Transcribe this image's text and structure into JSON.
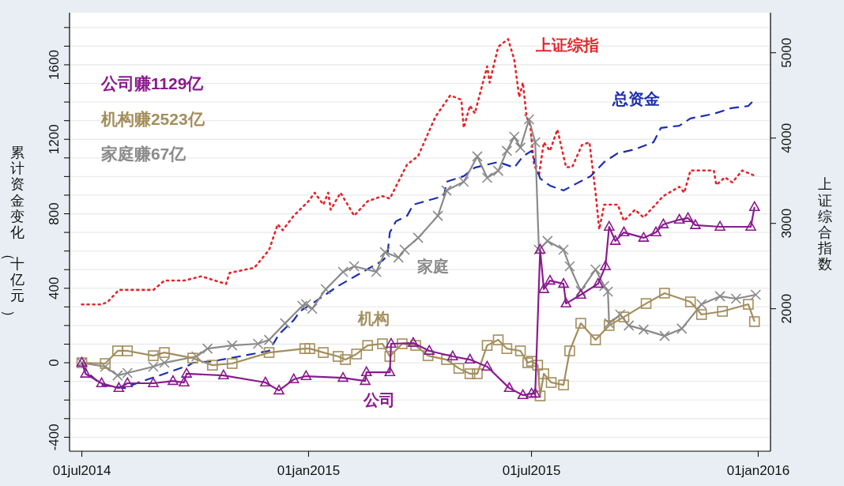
{
  "chart_data": {
    "type": "line",
    "ylabel": "累计资金变化（十亿元）",
    "y2label": "上证综合指数",
    "annotations": [
      "公司赚1129亿",
      "机构赚2523亿",
      "家庭赚67亿"
    ],
    "xlim": [
      "2014-06-21",
      "2016-01-11"
    ],
    "xticks": [
      {
        "value": "2014-07-01",
        "label": "01jul2014"
      },
      {
        "value": "2015-01-01",
        "label": "01jan2015"
      },
      {
        "value": "2015-07-01",
        "label": "01jul2015"
      },
      {
        "value": "2016-01-01",
        "label": "01jan2016"
      }
    ],
    "ylim": [
      -475,
      1880
    ],
    "yticks": [
      -400,
      {
        "value": -300,
        "label": null
      },
      {
        "value": -200,
        "label": null
      },
      {
        "value": -100,
        "label": null
      },
      0,
      {
        "value": 100,
        "label": null
      },
      {
        "value": 200,
        "label": null
      },
      {
        "value": 300,
        "label": null
      },
      400,
      {
        "value": 500,
        "label": null
      },
      {
        "value": 600,
        "label": null
      },
      {
        "value": 700,
        "label": null
      },
      800,
      {
        "value": 900,
        "label": null
      },
      {
        "value": 1000,
        "label": null
      },
      {
        "value": 1100,
        "label": null
      },
      1200,
      {
        "value": 1300,
        "label": null
      },
      {
        "value": 1400,
        "label": null
      },
      {
        "value": 1500,
        "label": null
      },
      1600,
      {
        "value": 1700,
        "label": null
      },
      {
        "value": 1800,
        "label": null
      }
    ],
    "y2lim": [
      330,
      5470
    ],
    "y2ticks": [
      2000,
      3000,
      4000,
      5000
    ],
    "grid": "y",
    "series": [
      {
        "name": "上证综指",
        "color": "#e4262b",
        "axis": "y2",
        "line_style": "dotted",
        "marker": "none",
        "x": [
          "2014-07-01",
          "2014-07-17",
          "2014-07-22",
          "2014-07-31",
          "2014-08-14",
          "2014-08-28",
          "2014-09-06",
          "2014-09-22",
          "2014-10-06",
          "2014-10-26",
          "2014-10-29",
          "2014-11-18",
          "2014-11-30",
          "2014-12-07",
          "2014-12-11",
          "2014-12-20",
          "2015-01-01",
          "2015-01-06",
          "2015-01-13",
          "2015-01-17",
          "2015-01-19",
          "2015-01-27",
          "2015-02-07",
          "2015-02-18",
          "2015-03-02",
          "2015-03-08",
          "2015-03-22",
          "2015-03-31",
          "2015-04-14",
          "2015-04-26",
          "2015-05-05",
          "2015-05-07",
          "2015-05-12",
          "2015-05-16",
          "2015-05-26",
          "2015-05-28",
          "2015-06-04",
          "2015-06-12",
          "2015-06-17",
          "2015-06-21",
          "2015-06-24",
          "2015-06-27",
          "2015-06-30",
          "2015-07-03",
          "2015-07-07",
          "2015-07-11",
          "2015-07-16",
          "2015-07-22",
          "2015-07-29",
          "2015-08-03",
          "2015-08-11",
          "2015-08-17",
          "2015-08-22",
          "2015-08-25",
          "2015-08-29",
          "2015-09-09",
          "2015-09-14",
          "2015-09-23",
          "2015-09-30",
          "2015-10-16",
          "2015-10-29",
          "2015-11-02",
          "2015-11-07",
          "2015-11-26",
          "2015-11-28",
          "2015-12-05",
          "2015-12-11",
          "2015-12-19",
          "2015-12-29"
        ],
        "values": [
          2050,
          2050,
          2080,
          2220,
          2220,
          2220,
          2330,
          2330,
          2380,
          2290,
          2420,
          2480,
          2690,
          2990,
          2920,
          3090,
          3260,
          3360,
          3220,
          3360,
          3160,
          3360,
          3090,
          3260,
          3320,
          3290,
          3690,
          3790,
          4250,
          4500,
          4450,
          4120,
          4380,
          4290,
          4840,
          4650,
          5070,
          5160,
          4920,
          4480,
          4650,
          4250,
          4150,
          3690,
          3560,
          3950,
          3850,
          4100,
          3660,
          3660,
          3920,
          3950,
          3360,
          2930,
          3220,
          3220,
          3030,
          3160,
          3070,
          3320,
          3430,
          3360,
          3620,
          3620,
          3450,
          3540,
          3480,
          3620,
          3560
        ]
      },
      {
        "name": "总资金",
        "color": "#1b2db0",
        "line_style": "dashed",
        "marker": "none",
        "x": [
          "2014-07-01",
          "2014-07-06",
          "2014-07-17",
          "2014-08-05",
          "2014-08-16",
          "2014-09-06",
          "2014-09-26",
          "2014-09-29",
          "2014-10-15",
          "2014-11-06",
          "2014-11-30",
          "2014-12-08",
          "2014-12-20",
          "2014-12-25",
          "2015-01-04",
          "2015-01-25",
          "2015-02-14",
          "2015-03-02",
          "2015-03-06",
          "2015-03-08",
          "2015-03-13",
          "2015-03-22",
          "2015-03-27",
          "2015-04-14",
          "2015-04-21",
          "2015-04-23",
          "2015-05-07",
          "2015-05-16",
          "2015-06-04",
          "2015-06-17",
          "2015-06-24",
          "2015-07-01",
          "2015-07-08",
          "2015-07-16",
          "2015-07-27",
          "2015-08-07",
          "2015-08-18",
          "2015-08-29",
          "2015-09-09",
          "2015-09-23",
          "2015-10-08",
          "2015-10-14",
          "2015-10-29",
          "2015-11-07",
          "2015-11-26",
          "2015-12-10",
          "2015-12-24",
          "2015-12-29"
        ],
        "values": [
          0,
          -55,
          -119,
          -136,
          -106,
          -59,
          -13,
          0,
          8,
          34,
          64,
          153,
          229,
          276,
          318,
          412,
          488,
          548,
          577,
          700,
          760,
          789,
          849,
          883,
          896,
          972,
          1002,
          1048,
          1078,
          1048,
          1108,
          1138,
          989,
          951,
          925,
          964,
          1002,
          1078,
          1125,
          1146,
          1184,
          1261,
          1273,
          1312,
          1337,
          1367,
          1379,
          1413
        ]
      },
      {
        "name": "家庭",
        "color": "#8a8a8a",
        "line_style": "solid",
        "marker": "cross",
        "x": [
          "2014-07-01",
          "2014-07-20",
          "2014-07-30",
          "2014-08-07",
          "2014-08-28",
          "2014-09-06",
          "2014-10-02",
          "2014-10-11",
          "2014-10-31",
          "2014-11-21",
          "2014-11-30",
          "2014-12-13",
          "2014-12-27",
          "2014-12-30",
          "2015-01-04",
          "2015-01-15",
          "2015-01-29",
          "2015-02-07",
          "2015-02-25",
          "2015-03-04",
          "2015-03-15",
          "2015-03-20",
          "2015-03-31",
          "2015-04-16",
          "2015-04-23",
          "2015-05-07",
          "2015-05-18",
          "2015-05-26",
          "2015-06-04",
          "2015-06-11",
          "2015-06-17",
          "2015-06-22",
          "2015-06-29",
          "2015-07-04",
          "2015-07-07",
          "2015-07-14",
          "2015-07-27",
          "2015-08-01",
          "2015-08-10",
          "2015-08-22",
          "2015-08-29",
          "2015-09-01",
          "2015-09-02",
          "2015-09-11",
          "2015-09-18",
          "2015-09-30",
          "2015-10-17",
          "2015-10-31",
          "2015-11-16",
          "2015-12-01",
          "2015-12-14",
          "2015-12-30"
        ],
        "values": [
          0,
          -21,
          -68,
          -55,
          -21,
          0,
          34,
          76,
          93,
          102,
          123,
          212,
          306,
          314,
          290,
          395,
          488,
          518,
          488,
          594,
          565,
          607,
          671,
          789,
          925,
          972,
          1108,
          993,
          1031,
          1138,
          1214,
          1155,
          1307,
          1184,
          607,
          654,
          607,
          518,
          386,
          501,
          412,
          382,
          212,
          259,
          200,
          178,
          144,
          183,
          314,
          357,
          344,
          365
        ]
      },
      {
        "name": "机构",
        "color": "#a38e5c",
        "line_style": "solid",
        "marker": "square",
        "x": [
          "2014-07-01",
          "2014-07-20",
          "2014-07-30",
          "2014-08-07",
          "2014-08-28",
          "2014-09-06",
          "2014-09-29",
          "2014-10-15",
          "2014-10-31",
          "2014-11-30",
          "2014-12-29",
          "2015-01-02",
          "2015-01-13",
          "2015-01-25",
          "2015-01-31",
          "2015-02-09",
          "2015-02-18",
          "2015-03-02",
          "2015-03-08",
          "2015-03-18",
          "2015-03-29",
          "2015-04-08",
          "2015-04-23",
          "2015-05-03",
          "2015-05-12",
          "2015-05-18",
          "2015-05-26",
          "2015-06-04",
          "2015-06-11",
          "2015-06-22",
          "2015-06-28",
          "2015-07-01",
          "2015-07-06",
          "2015-07-08",
          "2015-07-11",
          "2015-07-17",
          "2015-07-27",
          "2015-08-01",
          "2015-08-10",
          "2015-08-22",
          "2015-09-02",
          "2015-09-14",
          "2015-10-02",
          "2015-10-17",
          "2015-11-07",
          "2015-11-16",
          "2015-12-03",
          "2015-12-24",
          "2015-12-29"
        ],
        "values": [
          0,
          -4,
          64,
          64,
          38,
          55,
          25,
          -13,
          -4,
          55,
          76,
          76,
          55,
          34,
          17,
          47,
          93,
          102,
          34,
          102,
          93,
          38,
          17,
          -30,
          -59,
          -59,
          93,
          123,
          76,
          64,
          0,
          8,
          -13,
          -178,
          -59,
          -106,
          -119,
          64,
          212,
          123,
          200,
          246,
          318,
          374,
          327,
          259,
          276,
          314,
          221
        ]
      },
      {
        "name": "公司",
        "color": "#8a1a8e",
        "line_style": "solid",
        "marker": "triangle",
        "x": [
          "2014-07-01",
          "2014-07-04",
          "2014-07-17",
          "2014-07-31",
          "2014-08-07",
          "2014-08-28",
          "2014-09-13",
          "2014-09-22",
          "2014-09-24",
          "2014-10-24",
          "2014-11-27",
          "2014-12-08",
          "2014-12-20",
          "2014-12-30",
          "2015-01-29",
          "2015-02-16",
          "2015-02-17",
          "2015-03-08",
          "2015-03-09",
          "2015-03-27",
          "2015-04-09",
          "2015-04-28",
          "2015-05-12",
          "2015-05-26",
          "2015-06-13",
          "2015-06-24",
          "2015-07-01",
          "2015-07-04",
          "2015-07-08",
          "2015-07-11",
          "2015-07-16",
          "2015-07-27",
          "2015-07-29",
          "2015-08-10",
          "2015-08-24",
          "2015-08-30",
          "2015-09-02",
          "2015-09-07",
          "2015-09-14",
          "2015-09-30",
          "2015-10-10",
          "2015-10-16",
          "2015-10-29",
          "2015-11-05",
          "2015-11-11",
          "2015-12-01",
          "2015-12-26",
          "2015-12-29"
        ],
        "values": [
          0,
          -59,
          -110,
          -136,
          -110,
          -110,
          -98,
          -106,
          -59,
          -68,
          -106,
          -149,
          -89,
          -72,
          -81,
          -98,
          -51,
          -51,
          102,
          106,
          64,
          34,
          17,
          -21,
          -136,
          -174,
          -166,
          -166,
          607,
          395,
          441,
          424,
          318,
          365,
          424,
          518,
          730,
          654,
          700,
          671,
          700,
          743,
          768,
          777,
          739,
          730,
          730,
          836
        ]
      }
    ]
  }
}
